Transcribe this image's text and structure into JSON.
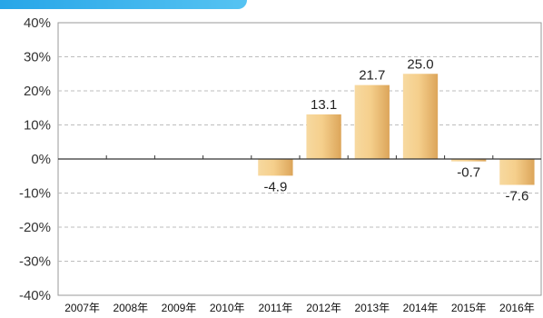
{
  "chart_data": {
    "type": "bar",
    "categories": [
      "2007年",
      "2008年",
      "2009年",
      "2010年",
      "2011年",
      "2012年",
      "2013年",
      "2014年",
      "2015年",
      "2016年"
    ],
    "values": [
      null,
      null,
      null,
      null,
      -4.9,
      13.1,
      21.7,
      25.0,
      -0.7,
      -7.6
    ],
    "data_labels": [
      "",
      "",
      "",
      "",
      "-4.9",
      "13.1",
      "21.7",
      "25.0",
      "-0.7",
      "-7.6"
    ],
    "y_ticks": [
      "40%",
      "30%",
      "20%",
      "10%",
      "0%",
      "-10%",
      "-20%",
      "-30%",
      "-40%"
    ],
    "ylim": [
      -40,
      40
    ],
    "grid": true,
    "bar_color": "#e8b96a",
    "bar_highlight": "#fbe6be",
    "header_color": "#27a6e8"
  }
}
